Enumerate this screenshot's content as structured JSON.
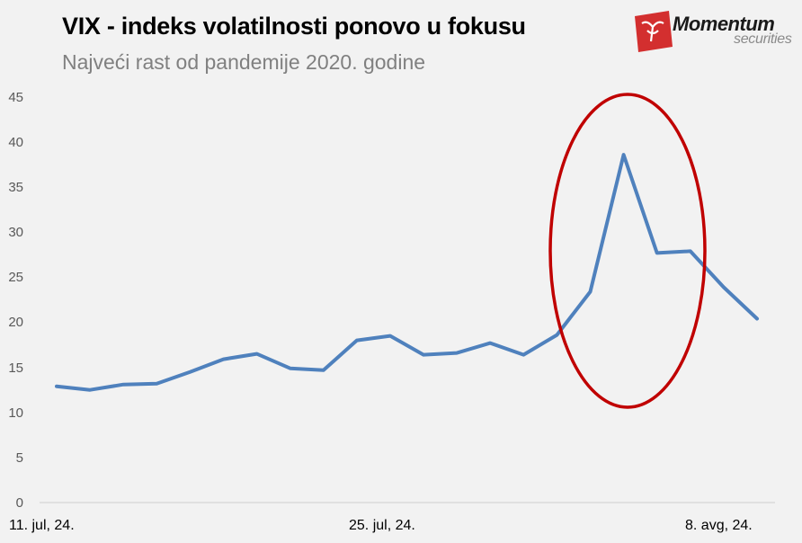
{
  "header": {
    "title": "VIX - indeks volatilnosti ponovo u fokusu",
    "subtitle": "Najveći rast od pandemije 2020. godine"
  },
  "logo": {
    "brand": "Momentum",
    "sub": "securities",
    "accent_color": "#d32f2f"
  },
  "chart_data": {
    "type": "line",
    "title": "VIX - indeks volatilnosti ponovo u fokusu",
    "subtitle": "Najveći rast od pandemije 2020. godine",
    "xlabel": "",
    "ylabel": "",
    "ylim": [
      0,
      45
    ],
    "yticks": [
      0,
      5,
      10,
      15,
      20,
      25,
      30,
      35,
      40,
      45
    ],
    "xtick_labels": [
      "11. jul, 24.",
      "25. jul, 24.",
      "8. avg, 24."
    ],
    "grid": false,
    "legend": null,
    "series": [
      {
        "name": "VIX",
        "color": "#4f81bd",
        "values": [
          12.9,
          12.5,
          13.1,
          13.2,
          14.5,
          15.9,
          16.5,
          14.9,
          14.7,
          18.0,
          18.5,
          16.4,
          16.6,
          17.7,
          16.4,
          18.6,
          23.4,
          38.6,
          27.7,
          27.9,
          23.9,
          20.4
        ]
      }
    ],
    "annotations": [
      {
        "type": "ellipse",
        "color": "#c00000",
        "description": "Highlight around spike (peak ~38.6)"
      }
    ]
  }
}
